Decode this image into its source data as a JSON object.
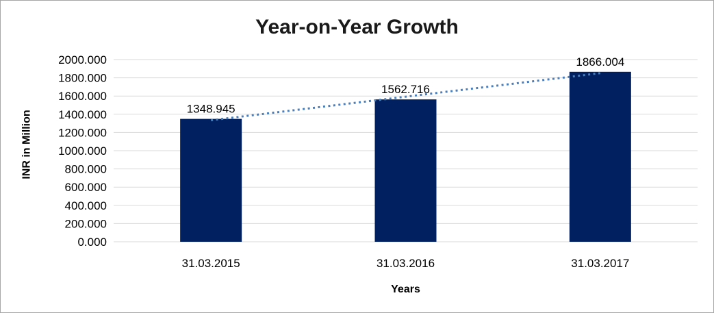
{
  "chart_data": {
    "type": "bar",
    "title": "Year-on-Year Growth",
    "xlabel": "Years",
    "ylabel": "INR in Million",
    "categories": [
      "31.03.2015",
      "31.03.2016",
      "31.03.2017"
    ],
    "values": [
      1348.945,
      1562.716,
      1866.004
    ],
    "data_labels": [
      "1348.945",
      "1562.716",
      "1866.004"
    ],
    "ylim": [
      0,
      2000
    ],
    "ytick_step": 200,
    "ytick_decimals": 3,
    "grid": true,
    "legend_position": "none",
    "trendline": {
      "type": "linear",
      "style": "dotted",
      "color": "#4a7ebb"
    },
    "colors": {
      "bar": "#002060",
      "gridline": "#d9d9d9",
      "title_text": "#1a1a1a",
      "tick_text": "#000000",
      "data_label_text": "#000000",
      "background": "#ffffff",
      "border": "#a6a6a6"
    }
  }
}
